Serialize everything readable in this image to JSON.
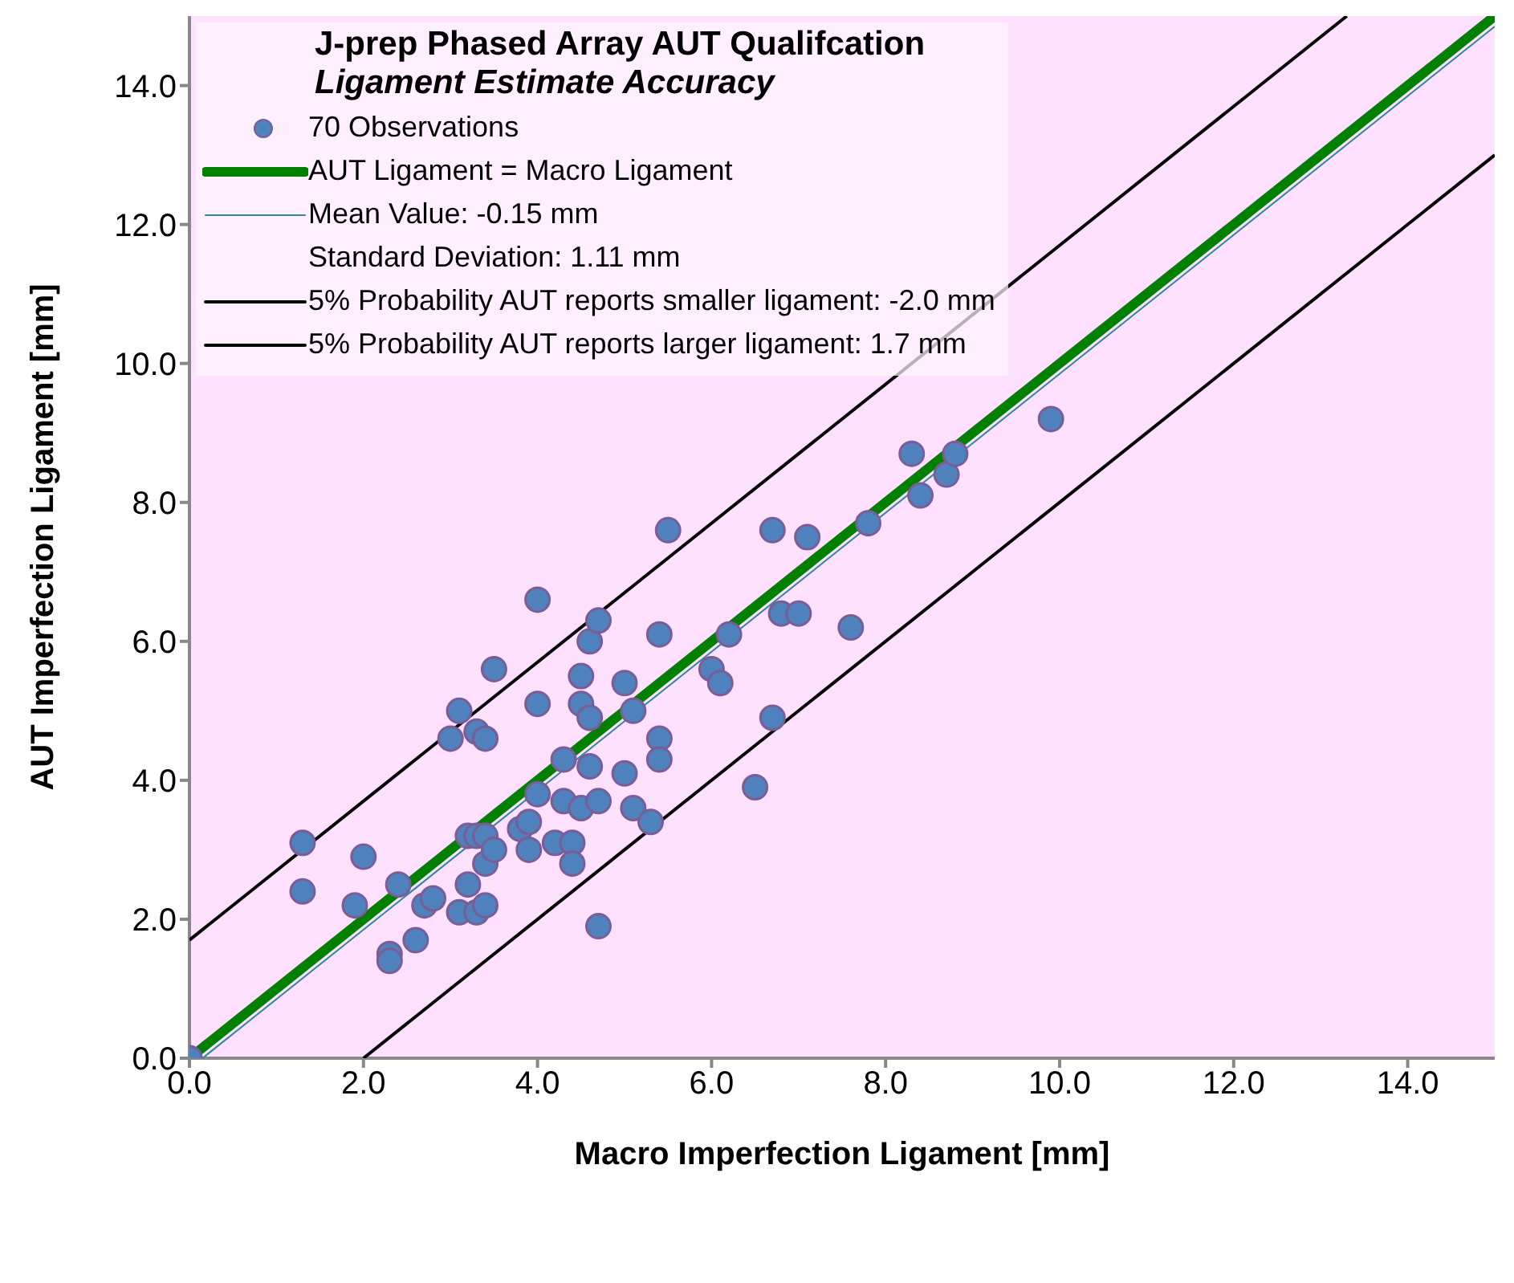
{
  "chart_data": {
    "type": "scatter",
    "title": "J-prep Phased Array AUT Qualifcation",
    "subtitle": "Ligament Estimate Accuracy",
    "xlabel": "Macro Imperfection Ligament [mm]",
    "ylabel": "AUT Imperfection Ligament [mm]",
    "xlim": [
      0,
      15
    ],
    "ylim": [
      0,
      15
    ],
    "xticks": [
      {
        "value": 0,
        "label": "0.0"
      },
      {
        "value": 2,
        "label": "2.0"
      },
      {
        "value": 4,
        "label": "4.0"
      },
      {
        "value": 6,
        "label": "6.0"
      },
      {
        "value": 8,
        "label": "8.0"
      },
      {
        "value": 10,
        "label": "10.0"
      },
      {
        "value": 12,
        "label": "12.0"
      },
      {
        "value": 14,
        "label": "14.0"
      }
    ],
    "yticks": [
      {
        "value": 0,
        "label": "0.0"
      },
      {
        "value": 2,
        "label": "2.0"
      },
      {
        "value": 4,
        "label": "4.0"
      },
      {
        "value": 6,
        "label": "6.0"
      },
      {
        "value": 8,
        "label": "8.0"
      },
      {
        "value": 10,
        "label": "10.0"
      },
      {
        "value": 12,
        "label": "12.0"
      },
      {
        "value": 14,
        "label": "14.0"
      }
    ],
    "grid": false,
    "legend": "top left",
    "annotations": [
      "Standard Deviation: 1.11 mm"
    ],
    "series": [
      {
        "name": "70 Observations",
        "marker": "circle",
        "color": "#4f81bd",
        "x": [
          0,
          1.3,
          1.3,
          1.9,
          2.0,
          2.3,
          2.3,
          2.4,
          2.6,
          2.7,
          2.8,
          3.0,
          3.1,
          3.1,
          3.2,
          3.2,
          3.3,
          3.3,
          3.3,
          3.4,
          3.4,
          3.4,
          3.4,
          3.5,
          3.5,
          3.8,
          3.9,
          3.9,
          4.0,
          4.0,
          4.0,
          4.2,
          4.3,
          4.3,
          4.4,
          4.4,
          4.5,
          4.5,
          4.5,
          4.6,
          4.6,
          4.6,
          4.7,
          4.7,
          4.7,
          5.0,
          5.0,
          5.1,
          5.1,
          5.3,
          5.4,
          5.4,
          5.4,
          5.5,
          6.0,
          6.1,
          6.2,
          6.5,
          6.7,
          6.7,
          6.8,
          7.0,
          7.1,
          7.6,
          7.8,
          8.3,
          8.4,
          8.7,
          8.8,
          9.9
        ],
        "values": [
          0,
          3.1,
          2.4,
          2.2,
          2.9,
          1.5,
          1.4,
          2.5,
          1.7,
          2.2,
          2.3,
          4.6,
          5.0,
          2.1,
          2.5,
          3.2,
          4.7,
          2.1,
          3.2,
          4.6,
          3.2,
          2.8,
          2.2,
          3.0,
          5.6,
          3.3,
          3.4,
          3.0,
          3.8,
          5.1,
          6.6,
          3.1,
          3.7,
          4.3,
          3.1,
          2.8,
          5.5,
          5.1,
          3.6,
          6.0,
          4.9,
          4.2,
          6.3,
          3.7,
          1.9,
          4.1,
          5.4,
          5.0,
          3.6,
          3.4,
          6.1,
          4.6,
          4.3,
          7.6,
          5.6,
          5.4,
          6.1,
          3.9,
          7.6,
          4.9,
          6.4,
          6.4,
          7.5,
          6.2,
          7.7,
          8.7,
          8.1,
          8.4,
          8.7,
          9.2
        ]
      },
      {
        "name": "AUT Ligament = Macro Ligament",
        "type": "line",
        "color": "#008000",
        "x": [
          0,
          15
        ],
        "values": [
          0,
          15
        ]
      },
      {
        "name": "Mean Value: -0.15 mm",
        "type": "line",
        "color": "#31859c",
        "x": [
          0.15,
          15
        ],
        "values": [
          0,
          14.85
        ]
      },
      {
        "name": "5% Probability AUT reports smaller ligament: -2.0 mm",
        "type": "line",
        "color": "#000000",
        "x": [
          2.0,
          15
        ],
        "values": [
          0,
          13.0
        ]
      },
      {
        "name": "5% Probability AUT reports larger ligament: 1.7 mm",
        "type": "line",
        "color": "#000000",
        "x": [
          0,
          13.3
        ],
        "values": [
          1.7,
          15
        ]
      }
    ]
  }
}
